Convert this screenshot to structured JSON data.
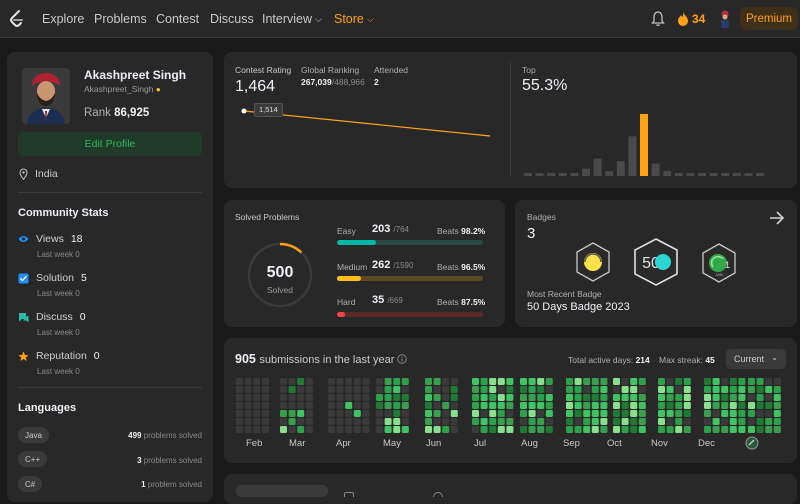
{
  "nav": {
    "items": [
      "Explore",
      "Problems",
      "Contest",
      "Discuss",
      "Interview",
      "Store"
    ],
    "streak": "34",
    "premium_label": "Premium"
  },
  "profile": {
    "name": "Akashpreet Singh",
    "username": "Akashpreet_Singh",
    "rank_label": "Rank",
    "rank_value": "86,925",
    "edit_label": "Edit Profile",
    "location": "India"
  },
  "community": {
    "title": "Community Stats",
    "stats": [
      {
        "label": "Views",
        "value": "18",
        "sub_label": "Last week",
        "sub_value": "0",
        "icon": "eye-icon",
        "color": "#1e90ff"
      },
      {
        "label": "Solution",
        "value": "5",
        "sub_label": "Last week",
        "sub_value": "0",
        "icon": "checkbox-icon",
        "color": "#1e90ff"
      },
      {
        "label": "Discuss",
        "value": "0",
        "sub_label": "Last week",
        "sub_value": "0",
        "icon": "discuss-icon",
        "color": "#2cbba6"
      },
      {
        "label": "Reputation",
        "value": "0",
        "sub_label": "Last week",
        "sub_value": "0",
        "icon": "star-icon",
        "color": "#ffa116"
      }
    ]
  },
  "languages": {
    "title": "Languages",
    "items": [
      {
        "name": "Java",
        "count": "499",
        "suffix": "problems solved"
      },
      {
        "name": "C++",
        "count": "3",
        "suffix": "problems solved"
      },
      {
        "name": "C#",
        "count": "1",
        "suffix": "problem solved"
      }
    ]
  },
  "contest": {
    "rating_label": "Contest Rating",
    "rating": "1,464",
    "global_label": "Global Ranking",
    "global_value": "267,039",
    "global_total": "/488,966",
    "attended_label": "Attended",
    "attended_value": "2",
    "tooltip": "1,514",
    "top_label": "Top",
    "top_value": "55.3%",
    "line_start": 1514,
    "line_end": 1464,
    "histogram": [
      1,
      1,
      1,
      1,
      2,
      6,
      14,
      4,
      12,
      32,
      50,
      10,
      4,
      2,
      1,
      1,
      1,
      1,
      1,
      1,
      1
    ],
    "highlight_index": 10,
    "colors": {
      "line": "#ffa116",
      "bar": "#4a4a4a",
      "highlight": "#ffa116"
    }
  },
  "solved": {
    "title": "Solved Problems",
    "total": "500",
    "total_label": "Solved",
    "ring_fraction": 0.12,
    "rows": [
      {
        "label": "Easy",
        "solved": "203",
        "total": "/764",
        "beats_label": "Beats",
        "beats": "98.2%",
        "fraction": 0.266,
        "color": "#00b8a3",
        "track": "#2a4a45"
      },
      {
        "label": "Medium",
        "solved": "262",
        "total": "/1590",
        "beats_label": "Beats",
        "beats": "96.5%",
        "fraction": 0.165,
        "color": "#ffc01e",
        "track": "#5a4a1f"
      },
      {
        "label": "Hard",
        "solved": "35",
        "total": "/669",
        "beats_label": "Beats",
        "beats": "87.5%",
        "fraction": 0.052,
        "color": "#ef4743",
        "track": "#5a2a2a"
      }
    ]
  },
  "badges": {
    "title": "Badges",
    "count": "3",
    "recent_label": "Most Recent Badge",
    "recent_value": "50 Days Badge 2023",
    "badge_texts": [
      "50",
      "JAN"
    ]
  },
  "submissions": {
    "count": "905",
    "label": "submissions in the last year",
    "active_label": "Total active days:",
    "active_value": "214",
    "streak_label": "Max streak:",
    "streak_value": "45",
    "select_value": "Current",
    "months": [
      "Feb",
      "Mar",
      "Apr",
      "May",
      "Jun",
      "Jul",
      "Aug",
      "Sep",
      "Oct",
      "Nov",
      "Dec"
    ]
  }
}
